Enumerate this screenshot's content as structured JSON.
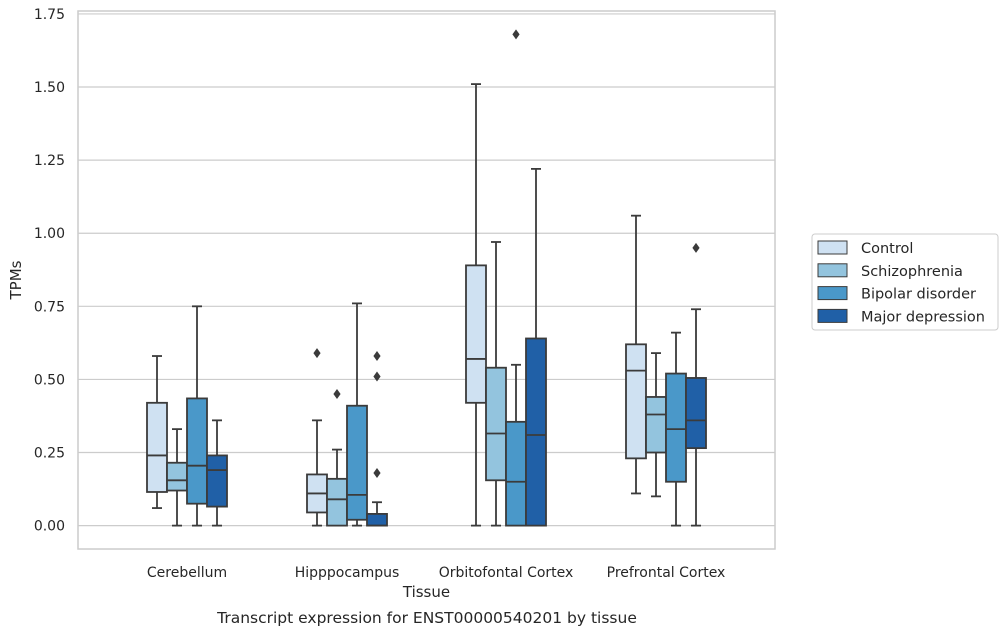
{
  "caption": "Transcript expression for ENST00000540201 by tissue",
  "chart_data": {
    "type": "boxplot",
    "xlabel": "Tissue",
    "ylabel": "TPMs",
    "ylim": [
      -0.08,
      1.76
    ],
    "yticks": [
      "0.00",
      "0.25",
      "0.50",
      "0.75",
      "1.00",
      "1.25",
      "1.50",
      "1.75"
    ],
    "grid": true,
    "legend_position": "right",
    "categories": [
      "Cerebellum",
      "Hipppocampus",
      "Orbitofontal Cortex",
      "Prefrontal Cortex"
    ],
    "series": [
      {
        "name": "Control",
        "color": "#cfe1f2",
        "boxes": [
          {
            "whislo": 0.06,
            "q1": 0.115,
            "med": 0.24,
            "q3": 0.42,
            "whishi": 0.58,
            "fliers": []
          },
          {
            "whislo": 0.0,
            "q1": 0.045,
            "med": 0.11,
            "q3": 0.175,
            "whishi": 0.36,
            "fliers": [
              0.59
            ]
          },
          {
            "whislo": 0.0,
            "q1": 0.42,
            "med": 0.57,
            "q3": 0.89,
            "whishi": 1.51,
            "fliers": []
          },
          {
            "whislo": 0.11,
            "q1": 0.23,
            "med": 0.53,
            "q3": 0.62,
            "whishi": 1.06,
            "fliers": []
          }
        ]
      },
      {
        "name": "Schizophrenia",
        "color": "#93c4de",
        "boxes": [
          {
            "whislo": 0.0,
            "q1": 0.12,
            "med": 0.155,
            "q3": 0.215,
            "whishi": 0.33,
            "fliers": []
          },
          {
            "whislo": 0.0,
            "q1": 0.0,
            "med": 0.09,
            "q3": 0.16,
            "whishi": 0.26,
            "fliers": [
              0.45
            ]
          },
          {
            "whislo": 0.0,
            "q1": 0.155,
            "med": 0.315,
            "q3": 0.54,
            "whishi": 0.97,
            "fliers": []
          },
          {
            "whislo": 0.1,
            "q1": 0.25,
            "med": 0.38,
            "q3": 0.44,
            "whishi": 0.59,
            "fliers": []
          }
        ]
      },
      {
        "name": "Bipolar disorder",
        "color": "#4a98c9",
        "boxes": [
          {
            "whislo": 0.0,
            "q1": 0.075,
            "med": 0.205,
            "q3": 0.435,
            "whishi": 0.75,
            "fliers": []
          },
          {
            "whislo": 0.0,
            "q1": 0.02,
            "med": 0.105,
            "q3": 0.41,
            "whishi": 0.76,
            "fliers": []
          },
          {
            "whislo": 0.0,
            "q1": 0.0,
            "med": 0.15,
            "q3": 0.355,
            "whishi": 0.55,
            "fliers": [
              1.68
            ]
          },
          {
            "whislo": 0.0,
            "q1": 0.15,
            "med": 0.33,
            "q3": 0.52,
            "whishi": 0.66,
            "fliers": []
          }
        ]
      },
      {
        "name": "Major depression",
        "color": "#2060a7",
        "boxes": [
          {
            "whislo": 0.0,
            "q1": 0.065,
            "med": 0.19,
            "q3": 0.24,
            "whishi": 0.36,
            "fliers": []
          },
          {
            "whislo": 0.0,
            "q1": 0.0,
            "med": 0.0,
            "q3": 0.04,
            "whishi": 0.08,
            "fliers": [
              0.18,
              0.51,
              0.58
            ]
          },
          {
            "whislo": 0.0,
            "q1": 0.0,
            "med": 0.31,
            "q3": 0.64,
            "whishi": 1.22,
            "fliers": []
          },
          {
            "whislo": 0.0,
            "q1": 0.265,
            "med": 0.36,
            "q3": 0.505,
            "whishi": 0.74,
            "fliers": [
              0.95
            ]
          }
        ]
      }
    ]
  }
}
